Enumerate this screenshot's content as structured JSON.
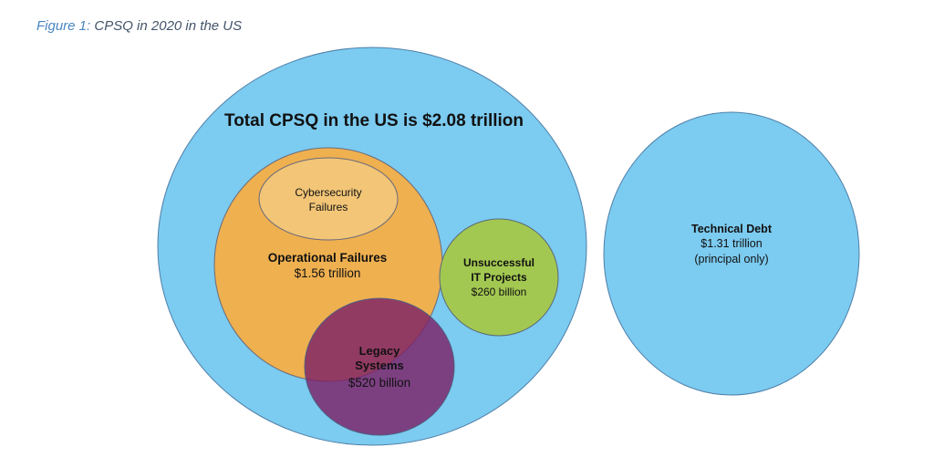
{
  "caption": {
    "prefix": "Figure 1:",
    "text": "CPSQ in 2020 in the US"
  },
  "colors": {
    "total": "#7ccbf0",
    "operational": "#efb050",
    "cybersecurity": "#f2c577",
    "unsuccessful": "#a3c851",
    "legacy": "#7d2168",
    "technical_debt": "#7ccbf0"
  },
  "total": {
    "label": "Total CPSQ in the US is $2.08 trillion"
  },
  "cybersecurity": {
    "line1": "Cybersecurity",
    "line2": "Failures"
  },
  "operational": {
    "name": "Operational Failures",
    "value": "$1.56 trillion"
  },
  "unsuccessful": {
    "line1": "Unsuccessful",
    "line2": "IT Projects",
    "value": "$260 billion"
  },
  "legacy": {
    "line1": "Legacy",
    "line2": "Systems",
    "value": "$520 billion"
  },
  "technical_debt": {
    "name": "Technical Debt",
    "value": "$1.31 trillion",
    "note": "(principal only)"
  }
}
